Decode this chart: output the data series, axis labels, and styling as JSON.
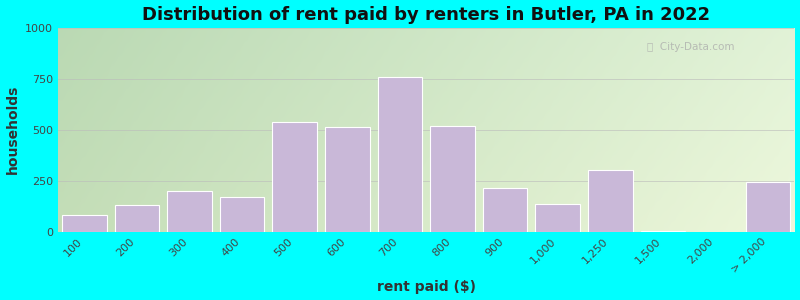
{
  "title": "Distribution of rent paid by renters in Butler, PA in 2022",
  "xlabel": "rent paid ($)",
  "ylabel": "households",
  "bar_color": "#c9b8d8",
  "bar_edgecolor": "#ffffff",
  "categories": [
    "100",
    "200",
    "300",
    "400",
    "500",
    "600",
    "700",
    "800",
    "900",
    "1,000",
    "1,250",
    "1,500",
    "2,000",
    "> 2,000"
  ],
  "values": [
    80,
    130,
    200,
    170,
    540,
    515,
    760,
    520,
    215,
    135,
    300,
    5,
    0,
    245
  ],
  "ylim": [
    0,
    1000
  ],
  "yticks": [
    0,
    250,
    500,
    750,
    1000
  ],
  "outer_bg": "#00ffff",
  "title_fontsize": 13,
  "axis_label_fontsize": 10,
  "tick_fontsize": 8
}
